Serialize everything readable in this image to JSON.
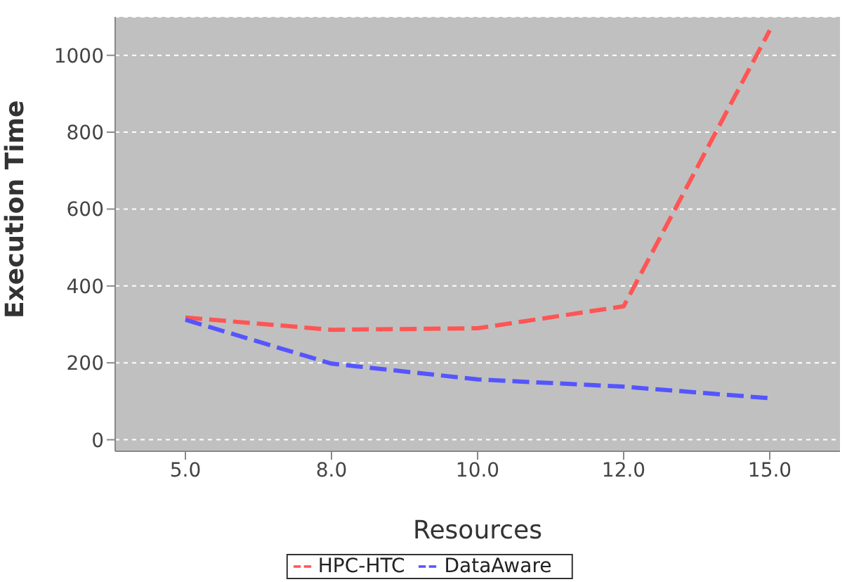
{
  "chart_data": {
    "type": "line",
    "xlabel": "Resources",
    "ylabel": "Execution Time",
    "categories": [
      "5.0",
      "8.0",
      "10.0",
      "12.0",
      "15.0"
    ],
    "series": [
      {
        "name": "HPC-HTC",
        "color": "#ff5555",
        "values": [
          318,
          286,
          290,
          347,
          1065
        ]
      },
      {
        "name": "DataAware",
        "color": "#5555ff",
        "values": [
          312,
          198,
          157,
          138,
          108
        ]
      }
    ],
    "ylim": [
      -30,
      1100
    ],
    "yticks": [
      0,
      200,
      400,
      600,
      800,
      1000
    ],
    "grid": "y",
    "legend": "bottom",
    "marker": "none",
    "line_style": "dashed"
  }
}
